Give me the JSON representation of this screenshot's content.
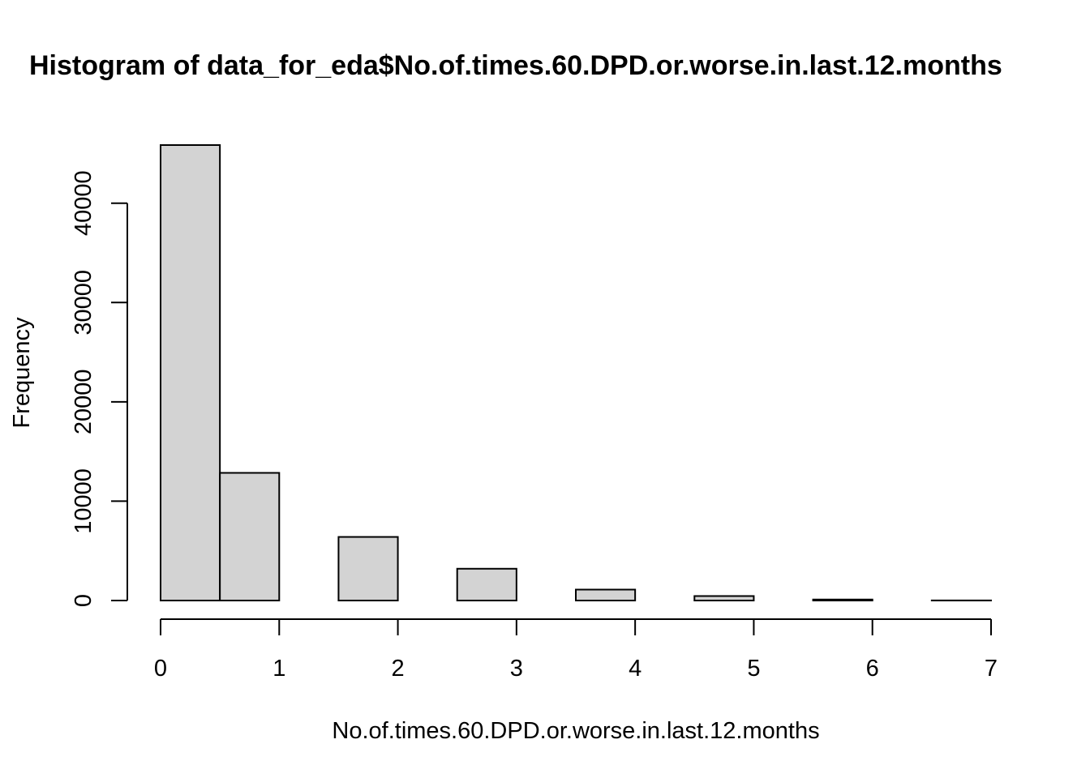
{
  "chart_data": {
    "type": "bar",
    "title": "Histogram of data_for_eda$No.of.times.60.DPD.or.worse.in.last.12.months",
    "xlabel": "No.of.times.60.DPD.or.worse.in.last.12.months",
    "ylabel": "Frequency",
    "bins": [
      {
        "from": 0.0,
        "to": 0.5,
        "value": 45850
      },
      {
        "from": 0.5,
        "to": 1.0,
        "value": 12850
      },
      {
        "from": 1.0,
        "to": 1.5,
        "value": 0
      },
      {
        "from": 1.5,
        "to": 2.0,
        "value": 6400
      },
      {
        "from": 2.0,
        "to": 2.5,
        "value": 0
      },
      {
        "from": 2.5,
        "to": 3.0,
        "value": 3200
      },
      {
        "from": 3.0,
        "to": 3.5,
        "value": 0
      },
      {
        "from": 3.5,
        "to": 4.0,
        "value": 1100
      },
      {
        "from": 4.0,
        "to": 4.5,
        "value": 0
      },
      {
        "from": 4.5,
        "to": 5.0,
        "value": 450
      },
      {
        "from": 5.0,
        "to": 5.5,
        "value": 0
      },
      {
        "from": 5.5,
        "to": 6.0,
        "value": 100
      },
      {
        "from": 6.0,
        "to": 6.5,
        "value": 0
      },
      {
        "from": 6.5,
        "to": 7.0,
        "value": 10
      }
    ],
    "xlim": [
      0,
      7
    ],
    "ylim": [
      0,
      45850
    ],
    "x_ticks": [
      "0",
      "1",
      "2",
      "3",
      "4",
      "5",
      "6",
      "7"
    ],
    "y_ticks": [
      "0",
      "10000",
      "20000",
      "30000",
      "40000"
    ],
    "y_tick_values": [
      0,
      10000,
      20000,
      30000,
      40000
    ],
    "x_tick_values": [
      0,
      1,
      2,
      3,
      4,
      5,
      6,
      7
    ],
    "grid": false,
    "bar_color": "#d3d3d3",
    "edge_color": "#000000"
  }
}
